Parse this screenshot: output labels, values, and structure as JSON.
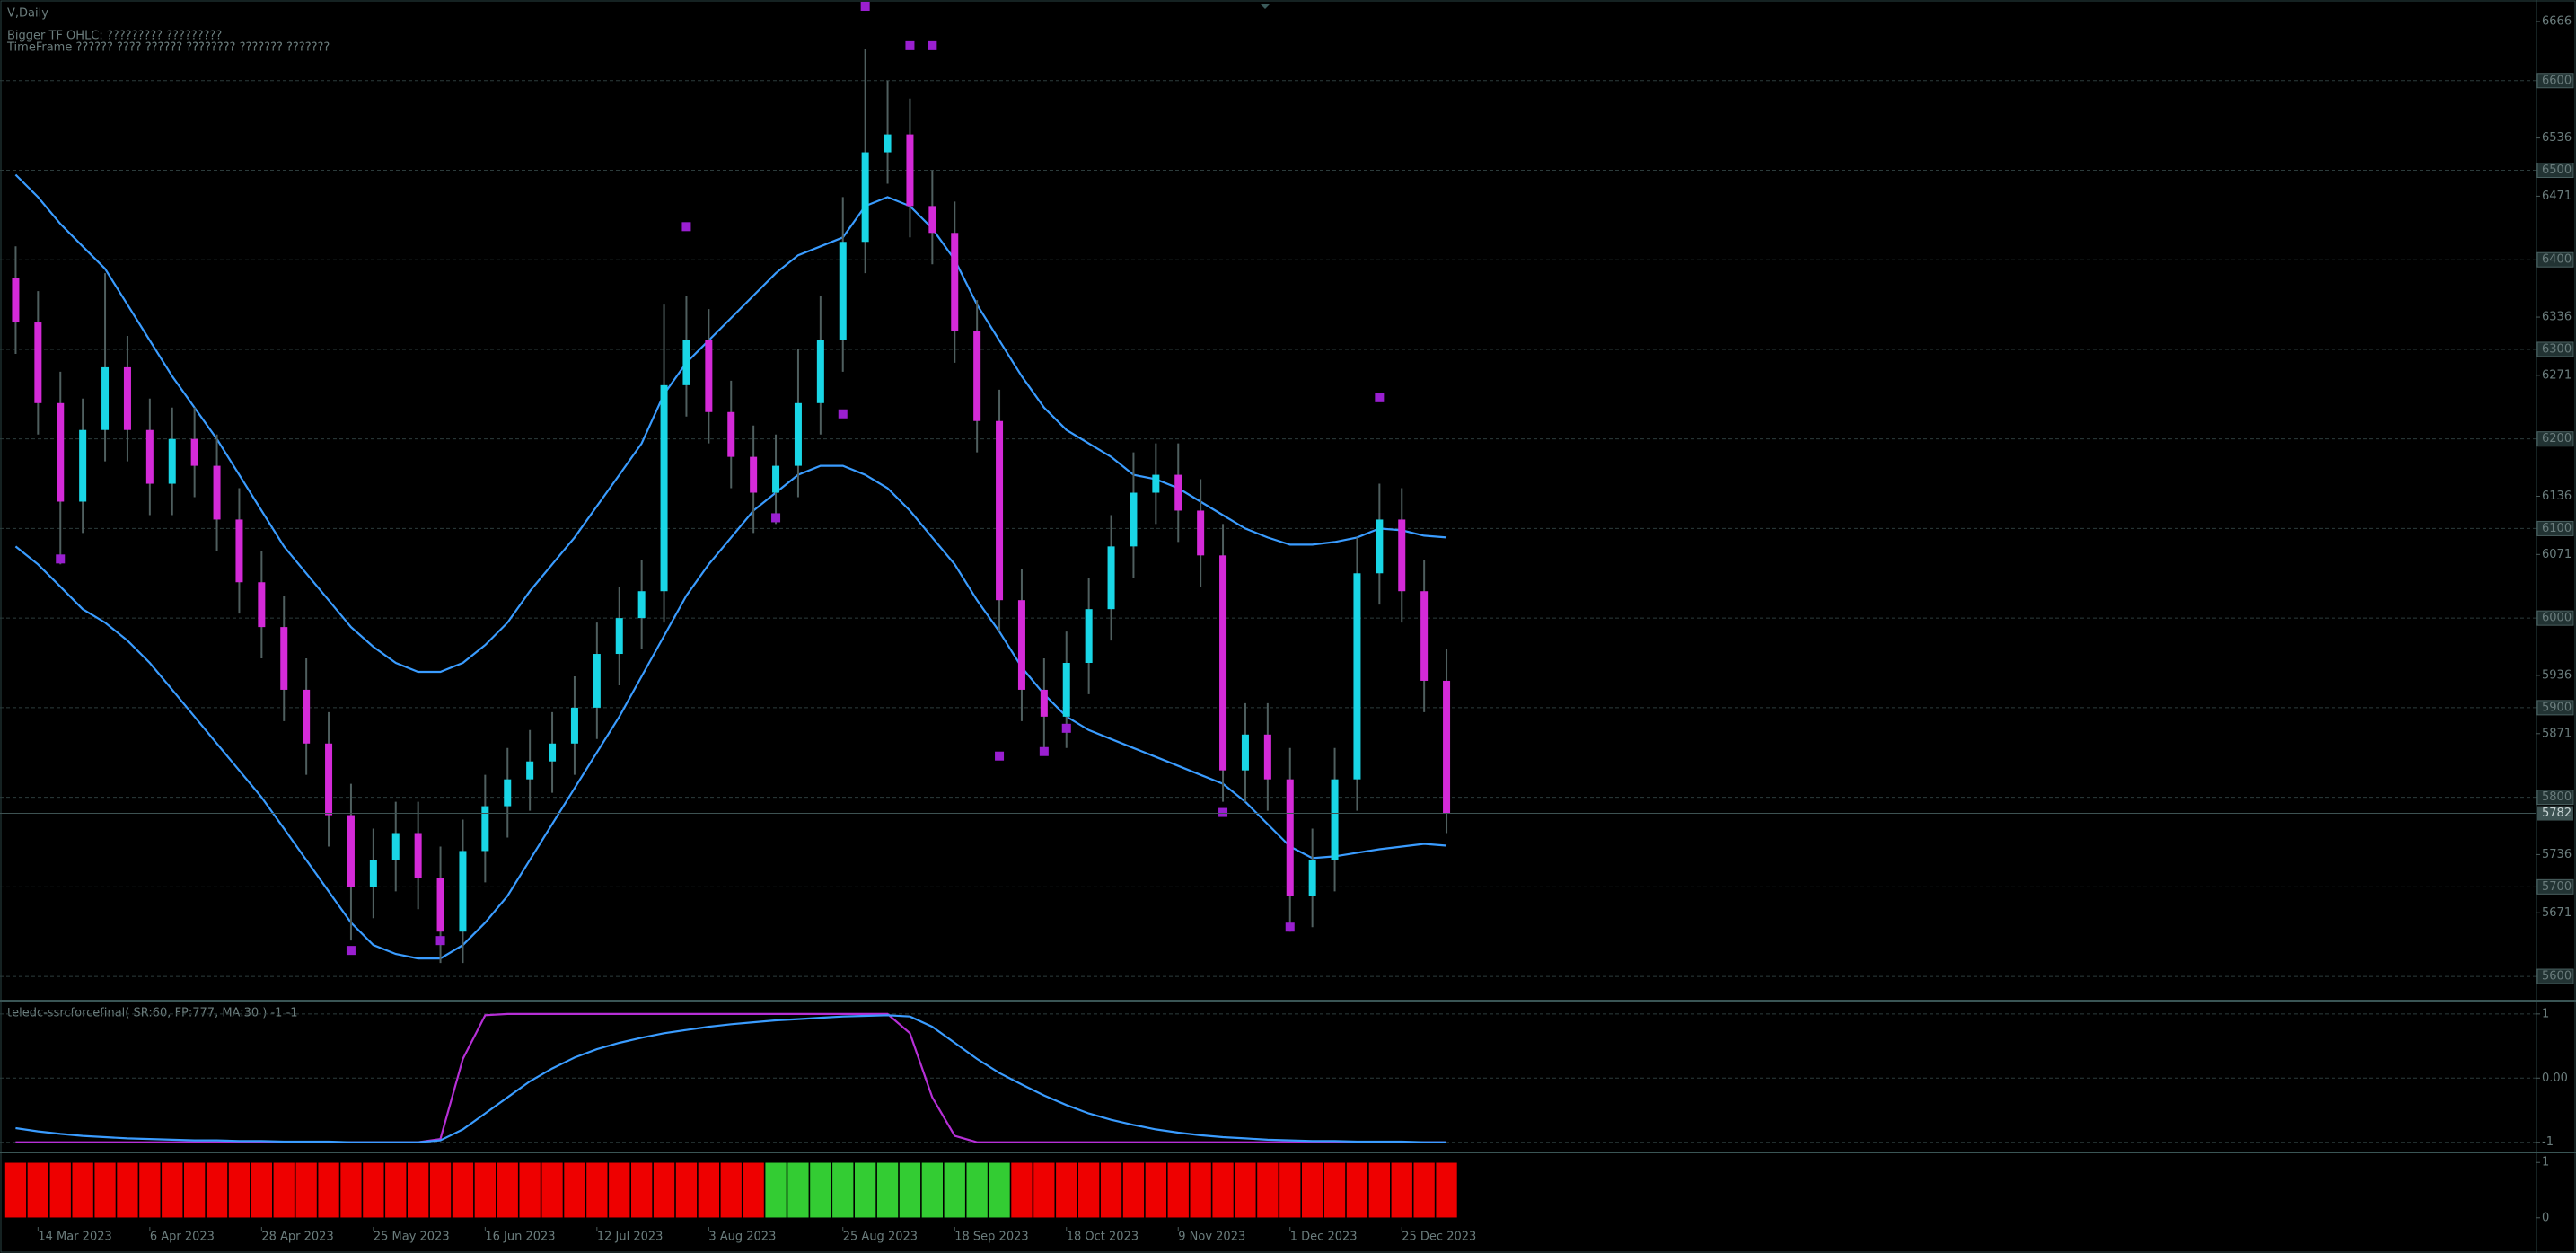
{
  "chart_data": [
    {
      "type": "candlestick",
      "title": "V,Daily",
      "subtitle": "Bigger TF OHLC:  ????????? ?????????",
      "note": "TimeFrame ?????? ???? ?????? ???????? ??????? ???????",
      "categories": [
        null,
        "14 Mar 2023",
        null,
        null,
        null,
        null,
        "6 Apr 2023",
        null,
        null,
        null,
        null,
        "28 Apr 2023",
        null,
        null,
        null,
        null,
        "25 May 2023",
        null,
        null,
        null,
        null,
        "16 Jun 2023",
        null,
        null,
        null,
        null,
        "12 Jul 2023",
        null,
        null,
        null,
        null,
        "3 Aug 2023",
        null,
        null,
        null,
        null,
        null,
        "25 Aug 2023",
        null,
        null,
        null,
        null,
        "18 Sep 2023",
        null,
        null,
        null,
        null,
        "18 Oct 2023",
        null,
        null,
        null,
        null,
        "9 Nov 2023",
        null,
        null,
        null,
        null,
        "1 Dec 2023",
        null,
        null,
        null,
        null,
        "25 Dec 2023",
        null,
        null
      ],
      "open": [
        6380,
        6330,
        6240,
        6130,
        6210,
        6280,
        6210,
        6150,
        6200,
        6170,
        6110,
        6040,
        5990,
        5920,
        5860,
        5780,
        5700,
        5730,
        5760,
        5710,
        5650,
        5740,
        5790,
        5820,
        5840,
        5860,
        5900,
        5960,
        6000,
        6030,
        6260,
        6310,
        6230,
        6180,
        6140,
        6170,
        6240,
        6310,
        6420,
        6520,
        6540,
        6460,
        6430,
        6320,
        6220,
        6020,
        5920,
        5890,
        5950,
        6010,
        6080,
        6140,
        6160,
        6120,
        6070,
        5830,
        5870,
        5820,
        5690,
        5730,
        5820,
        6050,
        6110,
        6030,
        5930
      ],
      "high": [
        6415,
        6365,
        6275,
        6245,
        6385,
        6315,
        6245,
        6235,
        6235,
        6205,
        6145,
        6075,
        6025,
        5955,
        5895,
        5815,
        5765,
        5795,
        5795,
        5745,
        5775,
        5825,
        5855,
        5875,
        5895,
        5935,
        5995,
        6035,
        6065,
        6350,
        6360,
        6345,
        6265,
        6215,
        6205,
        6300,
        6360,
        6470,
        6635,
        6600,
        6580,
        6500,
        6465,
        6355,
        6255,
        6055,
        5955,
        5985,
        6045,
        6115,
        6185,
        6195,
        6195,
        6155,
        6105,
        5905,
        5905,
        5855,
        5765,
        5855,
        6090,
        6150,
        6145,
        6065,
        5965
      ],
      "low": [
        6295,
        6205,
        6060,
        6095,
        6175,
        6175,
        6115,
        6115,
        6135,
        6075,
        6005,
        5955,
        5885,
        5825,
        5745,
        5640,
        5665,
        5695,
        5675,
        5615,
        5615,
        5705,
        5755,
        5785,
        5805,
        5825,
        5865,
        5925,
        5965,
        5995,
        6225,
        6195,
        6145,
        6095,
        6105,
        6135,
        6205,
        6275,
        6385,
        6485,
        6425,
        6395,
        6285,
        6185,
        5985,
        5885,
        5855,
        5855,
        5915,
        5975,
        6045,
        6105,
        6085,
        6035,
        5795,
        5795,
        5785,
        5650,
        5655,
        5695,
        5785,
        6015,
        5995,
        5895,
        5760
      ],
      "close": [
        6330,
        6240,
        6130,
        6210,
        6280,
        6210,
        6150,
        6200,
        6170,
        6110,
        6040,
        5990,
        5920,
        5860,
        5780,
        5700,
        5730,
        5760,
        5710,
        5650,
        5740,
        5790,
        5820,
        5840,
        5860,
        5900,
        5960,
        6000,
        6030,
        6260,
        6310,
        6230,
        6180,
        6140,
        6170,
        6240,
        6310,
        6420,
        6520,
        6540,
        6460,
        6430,
        6320,
        6220,
        6020,
        5920,
        5890,
        5950,
        6010,
        6080,
        6140,
        6160,
        6120,
        6070,
        5830,
        5870,
        5820,
        5690,
        5730,
        5820,
        6050,
        6110,
        6030,
        5930,
        5782
      ],
      "up_color": "#19d6e6",
      "down_color": "#d42ad8",
      "wick_color": "#4f5f5f",
      "series": [
        {
          "color": "#3a9cff",
          "values": [
            6495,
            6470,
            6440,
            6415,
            6390,
            6350,
            6310,
            6270,
            6235,
            6200,
            6160,
            6120,
            6080,
            6050,
            6020,
            5990,
            5968,
            5950,
            5940,
            5940,
            5950,
            5970,
            5995,
            6030,
            6060,
            6090,
            6125,
            6160,
            6195,
            6250,
            6285,
            6310,
            6335,
            6360,
            6385,
            6405,
            6415,
            6425,
            6460,
            6470,
            6460,
            6435,
            6400,
            6350,
            6310,
            6270,
            6235,
            6210,
            6195,
            6180,
            6160,
            6155,
            6145,
            6130,
            6115,
            6100,
            6090,
            6082,
            6082,
            6085,
            6090,
            6100,
            6098,
            6092,
            6090
          ]
        },
        {
          "color": "#3a9cff",
          "values": [
            6080,
            6060,
            6035,
            6010,
            5995,
            5975,
            5950,
            5920,
            5890,
            5860,
            5830,
            5800,
            5765,
            5730,
            5695,
            5660,
            5635,
            5625,
            5620,
            5620,
            5635,
            5660,
            5690,
            5730,
            5770,
            5810,
            5850,
            5890,
            5935,
            5980,
            6025,
            6060,
            6090,
            6120,
            6140,
            6160,
            6170,
            6170,
            6160,
            6145,
            6120,
            6090,
            6060,
            6020,
            5985,
            5945,
            5915,
            5890,
            5875,
            5865,
            5855,
            5845,
            5835,
            5825,
            5815,
            5795,
            5770,
            5745,
            5732,
            5734,
            5738,
            5742,
            5745,
            5748,
            5746
          ]
        }
      ],
      "markers": {
        "color": "#9a1fd0",
        "index": [
          2,
          15,
          19,
          30,
          34,
          37,
          38,
          40,
          41,
          44,
          46,
          47,
          54,
          57,
          61
        ],
        "values": [
          6066,
          5629,
          5640,
          6437,
          6112,
          6228,
          6683,
          6639,
          6639,
          5846,
          5851,
          5877,
          5783,
          5655,
          6246
        ]
      },
      "last_price": 5782,
      "ylim": [
        5574,
        6690
      ],
      "yticks": [
        5600,
        5700,
        5800,
        5900,
        6000,
        6100,
        6200,
        6300,
        6400,
        6500,
        6600
      ],
      "yticks_minor": [
        5671,
        5736,
        5871,
        5936,
        6071,
        6136,
        6271,
        6336,
        6471,
        6536,
        6666
      ],
      "grid": true
    },
    {
      "type": "line",
      "title": "teledc-ssrcforcefinal( SR:60, FP:777, MA:30 ) -1 -1",
      "series": [
        {
          "color": "#b62fd6",
          "values": [
            -1,
            -1,
            -1,
            -1,
            -1,
            -1,
            -1,
            -1,
            -1,
            -1,
            -1,
            -1,
            -1,
            -1,
            -1,
            -1,
            -1,
            -1,
            -1,
            -0.95,
            0.3,
            0.98,
            1,
            1,
            1,
            1,
            1,
            1,
            1,
            1,
            1,
            1,
            1,
            1,
            1,
            1,
            1,
            1,
            1,
            1,
            0.7,
            -0.3,
            -0.9,
            -1,
            -1,
            -1,
            -1,
            -1,
            -1,
            -1,
            -1,
            -1,
            -1,
            -1,
            -1,
            -1,
            -1,
            -1,
            -1,
            -1,
            -1,
            -1,
            -1,
            -1,
            -1
          ]
        },
        {
          "color": "#3a9cff",
          "values": [
            -0.78,
            -0.83,
            -0.87,
            -0.9,
            -0.92,
            -0.94,
            -0.95,
            -0.96,
            -0.97,
            -0.97,
            -0.98,
            -0.98,
            -0.99,
            -0.99,
            -0.99,
            -1,
            -1,
            -1,
            -1,
            -0.97,
            -0.8,
            -0.55,
            -0.3,
            -0.05,
            0.15,
            0.32,
            0.45,
            0.55,
            0.63,
            0.7,
            0.75,
            0.8,
            0.84,
            0.87,
            0.9,
            0.92,
            0.94,
            0.96,
            0.97,
            0.98,
            0.96,
            0.8,
            0.55,
            0.3,
            0.08,
            -0.1,
            -0.27,
            -0.42,
            -0.55,
            -0.65,
            -0.73,
            -0.8,
            -0.85,
            -0.89,
            -0.92,
            -0.94,
            -0.96,
            -0.97,
            -0.98,
            -0.98,
            -0.99,
            -0.99,
            -0.99,
            -1,
            -1
          ]
        }
      ],
      "ylim": [
        -1.13,
        1.18
      ],
      "yticks": [
        1,
        {
          "value": 0,
          "label": "0.00"
        },
        -1
      ],
      "grid": true
    },
    {
      "type": "bar",
      "values": [
        1,
        1,
        1,
        1,
        1,
        1,
        1,
        1,
        1,
        1,
        1,
        1,
        1,
        1,
        1,
        1,
        1,
        1,
        1,
        1,
        1,
        1,
        1,
        1,
        1,
        1,
        1,
        1,
        1,
        1,
        1,
        1,
        1,
        1,
        1,
        1,
        1,
        1,
        1,
        1,
        1,
        1,
        1,
        1,
        1,
        1,
        1,
        1,
        1,
        1,
        1,
        1,
        1,
        1,
        1,
        1,
        1,
        1,
        1,
        1,
        1,
        1,
        1,
        1,
        1
      ],
      "colors": [
        "#ee0000",
        "#ee0000",
        "#ee0000",
        "#ee0000",
        "#ee0000",
        "#ee0000",
        "#ee0000",
        "#ee0000",
        "#ee0000",
        "#ee0000",
        "#ee0000",
        "#ee0000",
        "#ee0000",
        "#ee0000",
        "#ee0000",
        "#ee0000",
        "#ee0000",
        "#ee0000",
        "#ee0000",
        "#ee0000",
        "#ee0000",
        "#ee0000",
        "#ee0000",
        "#ee0000",
        "#ee0000",
        "#ee0000",
        "#ee0000",
        "#ee0000",
        "#ee0000",
        "#ee0000",
        "#ee0000",
        "#ee0000",
        "#ee0000",
        "#ee0000",
        "#33cc33",
        "#33cc33",
        "#33cc33",
        "#33cc33",
        "#33cc33",
        "#33cc33",
        "#33cc33",
        "#33cc33",
        "#33cc33",
        "#33cc33",
        "#33cc33",
        "#ee0000",
        "#ee0000",
        "#ee0000",
        "#ee0000",
        "#ee0000",
        "#ee0000",
        "#ee0000",
        "#ee0000",
        "#ee0000",
        "#ee0000",
        "#ee0000",
        "#ee0000",
        "#ee0000",
        "#ee0000",
        "#ee0000",
        "#ee0000",
        "#ee0000",
        "#ee0000",
        "#ee0000",
        "#ee0000"
      ],
      "ylim": [
        -0.15,
        1.15
      ],
      "yticks": [
        0,
        1
      ]
    }
  ]
}
